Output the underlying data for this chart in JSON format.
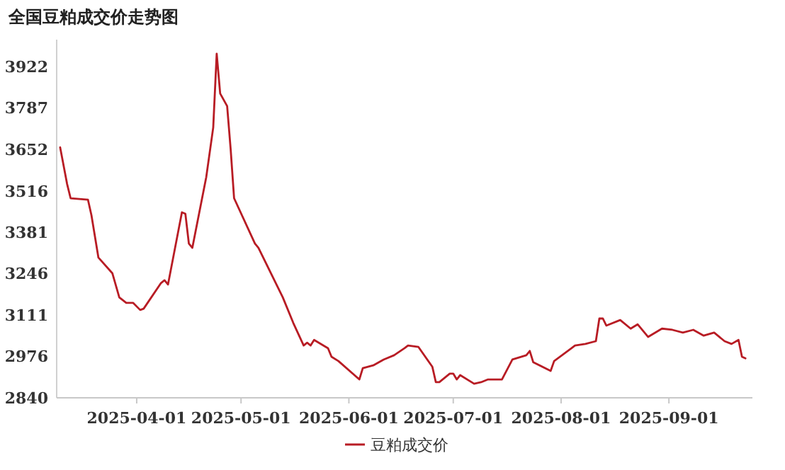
{
  "chart_data": {
    "type": "line",
    "title": "全国豆粕成交价走势图",
    "x": [
      "2025-03-10",
      "2025-03-12",
      "2025-03-13",
      "2025-03-18",
      "2025-03-19",
      "2025-03-21",
      "2025-03-25",
      "2025-03-27",
      "2025-03-29",
      "2025-03-31",
      "2025-04-02",
      "2025-04-03",
      "2025-04-08",
      "2025-04-09",
      "2025-04-10",
      "2025-04-14",
      "2025-04-15",
      "2025-04-16",
      "2025-04-17",
      "2025-04-21",
      "2025-04-23",
      "2025-04-24",
      "2025-04-25",
      "2025-04-27",
      "2025-04-28",
      "2025-04-29",
      "2025-05-05",
      "2025-05-06",
      "2025-05-07",
      "2025-05-13",
      "2025-05-16",
      "2025-05-19",
      "2025-05-20",
      "2025-05-21",
      "2025-05-22",
      "2025-05-26",
      "2025-05-27",
      "2025-05-29",
      "2025-06-04",
      "2025-06-05",
      "2025-06-08",
      "2025-06-11",
      "2025-06-14",
      "2025-06-17",
      "2025-06-18",
      "2025-06-21",
      "2025-06-25",
      "2025-06-26",
      "2025-06-27",
      "2025-06-30",
      "2025-07-01",
      "2025-07-02",
      "2025-07-03",
      "2025-07-07",
      "2025-07-09",
      "2025-07-11",
      "2025-07-15",
      "2025-07-18",
      "2025-07-22",
      "2025-07-23",
      "2025-07-24",
      "2025-07-29",
      "2025-07-30",
      "2025-08-04",
      "2025-08-05",
      "2025-08-08",
      "2025-08-11",
      "2025-08-12",
      "2025-08-13",
      "2025-08-14",
      "2025-08-18",
      "2025-08-21",
      "2025-08-23",
      "2025-08-26",
      "2025-08-30",
      "2025-09-02",
      "2025-09-05",
      "2025-09-08",
      "2025-09-11",
      "2025-09-14",
      "2025-09-17",
      "2025-09-19",
      "2025-09-21",
      "2025-09-22",
      "2025-09-23"
    ],
    "series": [
      {
        "name": "豆粕成交价",
        "color": "#b81c24",
        "values": [
          3658,
          3538,
          3492,
          3487,
          3436,
          3298,
          3247,
          3168,
          3150,
          3150,
          3127,
          3131,
          3215,
          3224,
          3210,
          3446,
          3441,
          3344,
          3330,
          3561,
          3723,
          3964,
          3834,
          3793,
          3654,
          3492,
          3344,
          3330,
          3307,
          3168,
          3085,
          3011,
          3020,
          3011,
          3029,
          3002,
          2974,
          2960,
          2900,
          2937,
          2946,
          2965,
          2979,
          3002,
          3011,
          3006,
          2941,
          2891,
          2891,
          2919,
          2919,
          2900,
          2914,
          2886,
          2891,
          2900,
          2900,
          2965,
          2979,
          2993,
          2956,
          2928,
          2960,
          3002,
          3011,
          3016,
          3025,
          3099,
          3099,
          3076,
          3094,
          3066,
          3080,
          3039,
          3066,
          3062,
          3053,
          3062,
          3043,
          3053,
          3025,
          3016,
          3029,
          2974,
          2969
        ]
      }
    ],
    "xlim": [
      "2025-03-09",
      "2025-09-25"
    ],
    "ylim": [
      2840,
      4010
    ],
    "yticks": [
      2840,
      2976,
      3111,
      3246,
      3381,
      3516,
      3652,
      3787,
      3922
    ],
    "xticks": [
      "2025-04-01",
      "2025-05-01",
      "2025-06-01",
      "2025-07-01",
      "2025-08-01",
      "2025-09-01"
    ],
    "grid": false,
    "legend": "bottom",
    "marker": "none",
    "line_style": "solid"
  }
}
